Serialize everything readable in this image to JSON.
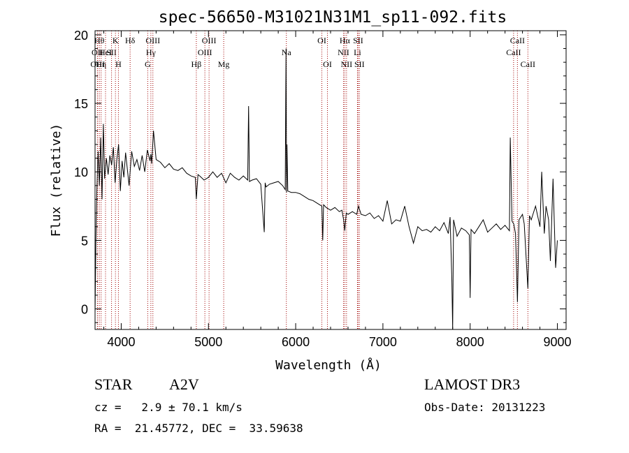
{
  "chart_data": {
    "type": "line",
    "title": "spec-56650-M31021N31M1_sp11-092.fits",
    "xlabel": "Wavelength (Å)",
    "ylabel": "Flux (relative)",
    "xlim": [
      3700,
      9100
    ],
    "ylim": [
      -1.5,
      20.3
    ],
    "xticks": [
      4000,
      5000,
      6000,
      7000,
      8000,
      9000
    ],
    "yticks": [
      0,
      5,
      10,
      15,
      20
    ],
    "grid": false,
    "line_color": "#000000",
    "marker_color": "#a00000",
    "series": [
      {
        "x": [
          3700,
          3710,
          3720,
          3735,
          3750,
          3765,
          3780,
          3795,
          3810,
          3830,
          3850,
          3870,
          3890,
          3910,
          3930,
          3950,
          3970,
          3990,
          4010,
          4030,
          4050,
          4070,
          4090,
          4102,
          4120,
          4150,
          4180,
          4210,
          4240,
          4270,
          4300,
          4330,
          4340,
          4350,
          4370,
          4400,
          4450,
          4500,
          4550,
          4600,
          4650,
          4700,
          4750,
          4800,
          4850,
          4861,
          4880,
          4900,
          4950,
          5000,
          5050,
          5100,
          5150,
          5200,
          5250,
          5300,
          5350,
          5400,
          5450,
          5460,
          5470,
          5500,
          5550,
          5600,
          5640,
          5650,
          5660,
          5700,
          5750,
          5800,
          5850,
          5880,
          5890,
          5895,
          5900,
          5910,
          5950,
          6000,
          6050,
          6100,
          6150,
          6200,
          6250,
          6300,
          6310,
          6320,
          6350,
          6400,
          6450,
          6500,
          6530,
          6550,
          6563,
          6580,
          6600,
          6650,
          6700,
          6720,
          6750,
          6800,
          6850,
          6900,
          6950,
          7000,
          7050,
          7100,
          7150,
          7200,
          7250,
          7300,
          7350,
          7400,
          7450,
          7500,
          7550,
          7600,
          7650,
          7700,
          7750,
          7770,
          7790,
          7800,
          7810,
          7830,
          7850,
          7900,
          7950,
          7990,
          8000,
          8010,
          8050,
          8100,
          8150,
          8200,
          8250,
          8300,
          8350,
          8400,
          8450,
          8460,
          8480,
          8500,
          8520,
          8542,
          8560,
          8600,
          8620,
          8662,
          8680,
          8700,
          8750,
          8800,
          8820,
          8850,
          8870,
          8900,
          8920,
          8950,
          8980,
          9000
        ],
        "y": [
          -0.3,
          5.0,
          8.5,
          11.5,
          9.0,
          12.5,
          8.0,
          13.5,
          9.5,
          11.0,
          9.8,
          11.2,
          10.5,
          11.8,
          9.2,
          10.9,
          12.0,
          8.6,
          10.8,
          9.6,
          11.4,
          10.2,
          9.0,
          10.0,
          11.5,
          10.4,
          10.9,
          10.1,
          11.2,
          10.0,
          11.6,
          10.8,
          11.3,
          10.6,
          13.0,
          10.9,
          10.7,
          10.3,
          10.6,
          10.2,
          10.1,
          10.3,
          9.9,
          9.7,
          9.6,
          8.0,
          9.8,
          9.7,
          9.4,
          9.6,
          10.0,
          9.6,
          9.9,
          9.2,
          9.9,
          9.6,
          9.4,
          9.7,
          9.4,
          14.8,
          9.3,
          9.4,
          9.5,
          9.1,
          5.6,
          9.2,
          8.9,
          9.1,
          9.2,
          9.3,
          9.0,
          8.7,
          19.0,
          8.5,
          12.0,
          8.6,
          8.5,
          8.5,
          8.4,
          8.2,
          8.0,
          7.9,
          7.7,
          7.5,
          5.0,
          7.6,
          7.4,
          7.2,
          7.4,
          7.1,
          7.2,
          6.5,
          5.7,
          7.0,
          6.9,
          7.1,
          6.9,
          7.5,
          6.9,
          6.8,
          7.0,
          6.6,
          6.8,
          6.4,
          7.9,
          6.2,
          6.5,
          6.4,
          7.5,
          6.0,
          4.8,
          6.0,
          5.7,
          5.8,
          5.6,
          6.0,
          5.7,
          6.3,
          5.5,
          6.7,
          2.2,
          -1.5,
          6.5,
          5.9,
          5.3,
          5.9,
          5.7,
          5.4,
          0.8,
          5.8,
          5.5,
          6.0,
          6.5,
          5.6,
          5.9,
          6.2,
          5.8,
          6.1,
          5.7,
          12.5,
          6.4,
          6.2,
          5.5,
          0.5,
          6.5,
          6.9,
          6.2,
          1.5,
          6.8,
          6.5,
          7.5,
          6.0,
          10.0,
          5.5,
          7.5,
          6.5,
          3.5,
          9.5,
          3.0,
          5.0
        ]
      }
    ],
    "line_markers": [
      {
        "wave": 3750,
        "label": "Hθ",
        "row": 1
      },
      {
        "wave": 3727,
        "label": "OII",
        "row": 2
      },
      {
        "wave": 3730,
        "label": "OIII",
        "row": 3
      },
      {
        "wave": 3770,
        "label": "Hη",
        "row": 3
      },
      {
        "wave": 3820,
        "label": "HeI",
        "row": 2
      },
      {
        "wave": 3889,
        "label": "SII",
        "row": 2
      },
      {
        "wave": 3934,
        "label": "K",
        "row": 1
      },
      {
        "wave": 3968,
        "label": "H",
        "row": 3
      },
      {
        "wave": 4102,
        "label": "Hδ",
        "row": 1
      },
      {
        "wave": 4304,
        "label": "G",
        "row": 3
      },
      {
        "wave": 4340,
        "label": "Hγ",
        "row": 2
      },
      {
        "wave": 4363,
        "label": "OIII",
        "row": 1
      },
      {
        "wave": 4861,
        "label": "Hβ",
        "row": 3
      },
      {
        "wave": 4959,
        "label": "OIII",
        "row": 2
      },
      {
        "wave": 5007,
        "label": "OIII",
        "row": 1
      },
      {
        "wave": 5175,
        "label": "Mg",
        "row": 3
      },
      {
        "wave": 5893,
        "label": "Na",
        "row": 2
      },
      {
        "wave": 6300,
        "label": "OI",
        "row": 1
      },
      {
        "wave": 6364,
        "label": "OI",
        "row": 3
      },
      {
        "wave": 6548,
        "label": "NII",
        "row": 2
      },
      {
        "wave": 6563,
        "label": "Hα",
        "row": 1
      },
      {
        "wave": 6583,
        "label": "NII",
        "row": 3
      },
      {
        "wave": 6708,
        "label": "Li",
        "row": 2
      },
      {
        "wave": 6716,
        "label": "SII",
        "row": 1
      },
      {
        "wave": 6731,
        "label": "SII",
        "row": 3
      },
      {
        "wave": 8498,
        "label": "CaII",
        "row": 2
      },
      {
        "wave": 8542,
        "label": "CaII",
        "row": 1
      },
      {
        "wave": 8662,
        "label": "CaII",
        "row": 3
      }
    ]
  },
  "info": {
    "object_class": "STAR",
    "subclass": "A2V",
    "redshift": "cz =   2.9 ± 70.1 km/s",
    "coords": "RA =  21.45772, DEC =  33.59638",
    "survey": "LAMOST DR3",
    "obs_date": "Obs-Date: 20131223"
  }
}
